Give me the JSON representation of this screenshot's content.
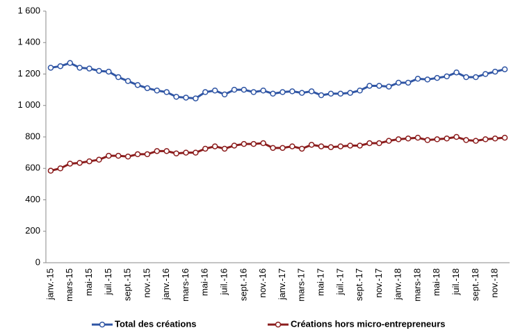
{
  "chart_data": {
    "type": "line",
    "categories": [
      "janv.-15",
      null,
      "mars-15",
      null,
      "mai-15",
      null,
      "juil.-15",
      null,
      "sept.-15",
      null,
      "nov.-15",
      null,
      "janv.-16",
      null,
      "mars-16",
      null,
      "mai-16",
      null,
      "juil.-16",
      null,
      "sept.-16",
      null,
      "nov.-16",
      null,
      "janv.-17",
      null,
      "mars-17",
      null,
      "mai-17",
      null,
      "juil.-17",
      null,
      "sept.-17",
      null,
      "nov.-17",
      null,
      "janv.-18",
      null,
      "mars-18",
      null,
      "mai-18",
      null,
      "juil.-18",
      null,
      "sept.-18",
      null,
      "nov.-18",
      null
    ],
    "series": [
      {
        "name": "Total des créations",
        "color": "#2f55a4",
        "values": [
          1240,
          1250,
          1270,
          1240,
          1235,
          1220,
          1215,
          1180,
          1155,
          1130,
          1110,
          1095,
          1085,
          1055,
          1050,
          1045,
          1085,
          1095,
          1070,
          1100,
          1100,
          1085,
          1095,
          1075,
          1085,
          1090,
          1080,
          1090,
          1065,
          1075,
          1075,
          1080,
          1095,
          1125,
          1125,
          1120,
          1145,
          1145,
          1170,
          1165,
          1175,
          1185,
          1210,
          1180,
          1180,
          1200,
          1215,
          1230
        ]
      },
      {
        "name": "Créations hors micro-entrepreneurs",
        "color": "#8b1c1c",
        "values": [
          585,
          600,
          630,
          635,
          645,
          655,
          680,
          680,
          675,
          690,
          690,
          710,
          710,
          695,
          700,
          700,
          725,
          740,
          725,
          745,
          755,
          755,
          760,
          730,
          730,
          740,
          725,
          750,
          740,
          735,
          740,
          745,
          745,
          760,
          760,
          775,
          785,
          790,
          795,
          780,
          785,
          790,
          800,
          780,
          775,
          785,
          790,
          795
        ]
      }
    ],
    "ylim": [
      0,
      1600
    ],
    "yticks": [
      0,
      200,
      400,
      600,
      800,
      {
        "value": 1000,
        "label": "1 000"
      },
      {
        "value": 1200,
        "label": "1 200"
      },
      {
        "value": 1400,
        "label": "1 400"
      },
      {
        "value": 1600,
        "label": "1 600"
      }
    ],
    "grid": false
  }
}
